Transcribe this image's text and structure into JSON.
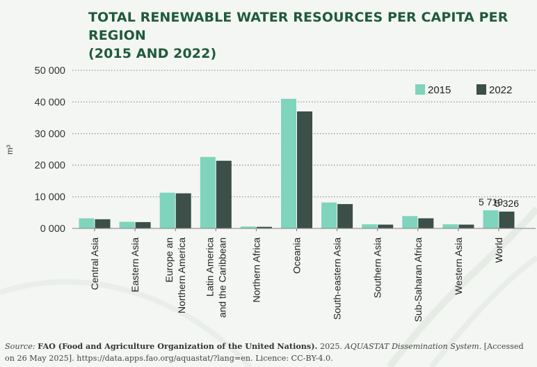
{
  "title_line1": "TOTAL RENEWABLE WATER RESOURCES PER CAPITA PER REGION",
  "title_line2": "(2015 AND 2022)",
  "colors": {
    "title": "#1f5a3c",
    "series_2015": "#7fd4bd",
    "series_2022": "#3c4f49",
    "grid": "#999999",
    "background": "#f4f6f3"
  },
  "chart_data": {
    "type": "bar",
    "title": "TOTAL RENEWABLE WATER RESOURCES PER CAPITA PER REGION (2015 AND 2022)",
    "xlabel": "",
    "ylabel": "m³",
    "ylim": [
      0,
      50000
    ],
    "yticks": [
      0,
      10000,
      20000,
      30000,
      40000,
      50000
    ],
    "ytick_labels": [
      "0 000",
      "10 000",
      "20 000",
      "30 000",
      "40 000",
      "50 000"
    ],
    "grid": true,
    "legend_position": "top-right",
    "categories": [
      [
        "Central Asia"
      ],
      [
        "Eastern Asia"
      ],
      [
        "Europe an",
        "Northern America"
      ],
      [
        "Latin America",
        "and the Caribbean"
      ],
      [
        "Northern Africa"
      ],
      [
        "Oceania"
      ],
      [
        "South-eastern Asia"
      ],
      [
        "Southern Asia"
      ],
      [
        "Sub-Saharan Africa"
      ],
      [
        "Western Asia"
      ],
      [
        "World"
      ]
    ],
    "series": [
      {
        "name": "2015",
        "values": [
          3200,
          2100,
          11300,
          22600,
          600,
          41000,
          8200,
          1300,
          3900,
          1300,
          5719
        ]
      },
      {
        "name": "2022",
        "values": [
          2900,
          2000,
          11100,
          21400,
          500,
          37000,
          7700,
          1200,
          3200,
          1200,
          5326
        ]
      }
    ],
    "annotations": [
      {
        "category_index": 10,
        "series": "2015",
        "label": "5 719"
      },
      {
        "category_index": 10,
        "series": "2022",
        "label": "5 326"
      }
    ]
  },
  "source": {
    "label": "Source:",
    "org": "FAO (Food and Agriculture Organization of the United Nations).",
    "year": " 2025. ",
    "system": "AQUASTAT Dissemination System.",
    "accessed": " [Accessed on 26 May 2025]. https://data.apps.fao.org/aquastat/?lang=en. Licence: CC-BY-4.0."
  }
}
